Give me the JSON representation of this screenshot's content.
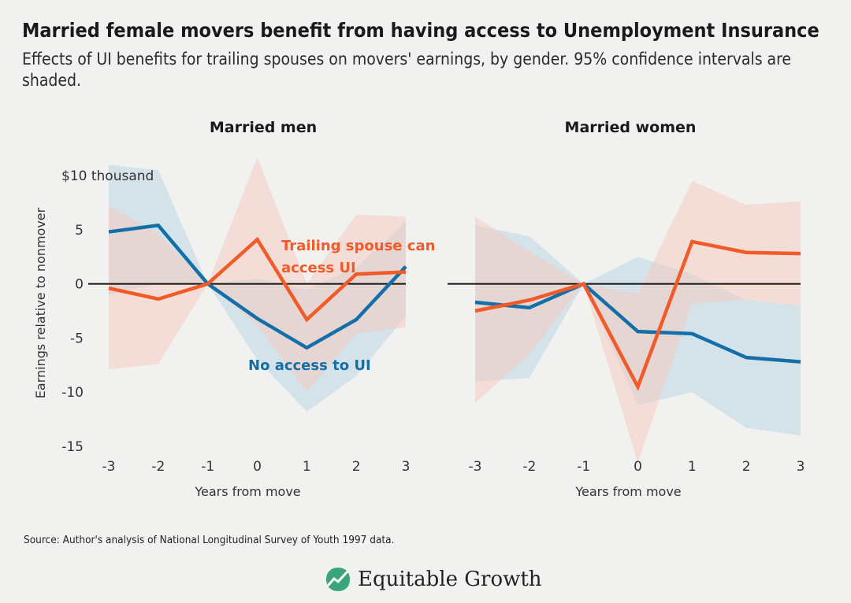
{
  "title": "Married female movers benefit from having access to Unemployment Insurance",
  "subtitle": "Effects of UI benefits for trailing spouses on movers' earnings, by gender. 95% confidence intervals are shaded.",
  "source": "Source: Author's analysis of National Longitudinal Survey of Youth 1997 data.",
  "brand": "Equitable Growth",
  "colors": {
    "access": "#f15a29",
    "no_access": "#146fa8",
    "access_band": "#f7c9bc",
    "no_access_band": "#bcd7e6",
    "background": "#f1f1f0"
  },
  "chart_data": [
    {
      "type": "line",
      "title": "Married men",
      "xlabel": "Years from move",
      "ylabel": "Earnings relative to nonmover",
      "y_top_label": "$10 thousand",
      "x": [
        -3,
        -2,
        -1,
        0,
        1,
        2,
        3
      ],
      "x_tick_labels": [
        "-3",
        "-2",
        "-1",
        "0",
        "1",
        "2",
        "3"
      ],
      "y_ticks": [
        10,
        5,
        0,
        -5,
        -10,
        -15
      ],
      "y_tick_labels": [
        "",
        "5",
        "0",
        "-5",
        "-10",
        "-15"
      ],
      "ylim": [
        -15,
        12
      ],
      "series": [
        {
          "name": "No access to UI",
          "color": "#146fa8",
          "values": [
            4.8,
            5.4,
            0,
            -3.2,
            -5.9,
            -3.3,
            1.6
          ],
          "ci_low": [
            -1.0,
            0.0,
            0,
            -7.0,
            -11.8,
            -8.5,
            -3.0
          ],
          "ci_high": [
            11.0,
            10.5,
            0,
            0.5,
            -0.5,
            1.5,
            5.8
          ]
        },
        {
          "name": "Trailing spouse can access UI",
          "color": "#f15a29",
          "values": [
            -0.4,
            -1.4,
            0,
            4.1,
            -3.3,
            0.9,
            1.1
          ],
          "ci_low": [
            -7.9,
            -7.4,
            0,
            -3.8,
            -10.0,
            -4.6,
            -4.0
          ],
          "ci_high": [
            7.2,
            4.6,
            0,
            11.7,
            0.0,
            6.4,
            6.2
          ]
        }
      ]
    },
    {
      "type": "line",
      "title": "Married women",
      "xlabel": "Years from move",
      "x": [
        -3,
        -2,
        -1,
        0,
        1,
        2,
        3
      ],
      "x_tick_labels": [
        "-3",
        "-2",
        "-1",
        "0",
        "1",
        "2",
        "3"
      ],
      "ylim": [
        -15,
        12
      ],
      "series": [
        {
          "name": "No access to UI",
          "color": "#146fa8",
          "values": [
            -1.7,
            -2.2,
            0,
            -4.4,
            -4.6,
            -6.8,
            -7.2
          ],
          "ci_low": [
            -9.0,
            -8.7,
            0,
            -11.2,
            -10.0,
            -13.3,
            -14.0
          ],
          "ci_high": [
            5.4,
            4.4,
            0,
            2.5,
            0.9,
            -1.5,
            -2.0
          ]
        },
        {
          "name": "Trailing spouse can access UI",
          "color": "#f15a29",
          "values": [
            -2.5,
            -1.5,
            0,
            -9.5,
            3.9,
            2.9,
            2.8
          ],
          "ci_low": [
            -11.0,
            -6.5,
            0,
            -16.5,
            -1.8,
            -1.5,
            -2.0
          ],
          "ci_high": [
            6.2,
            3.0,
            0,
            -0.9,
            9.5,
            7.3,
            7.6
          ]
        }
      ]
    }
  ]
}
